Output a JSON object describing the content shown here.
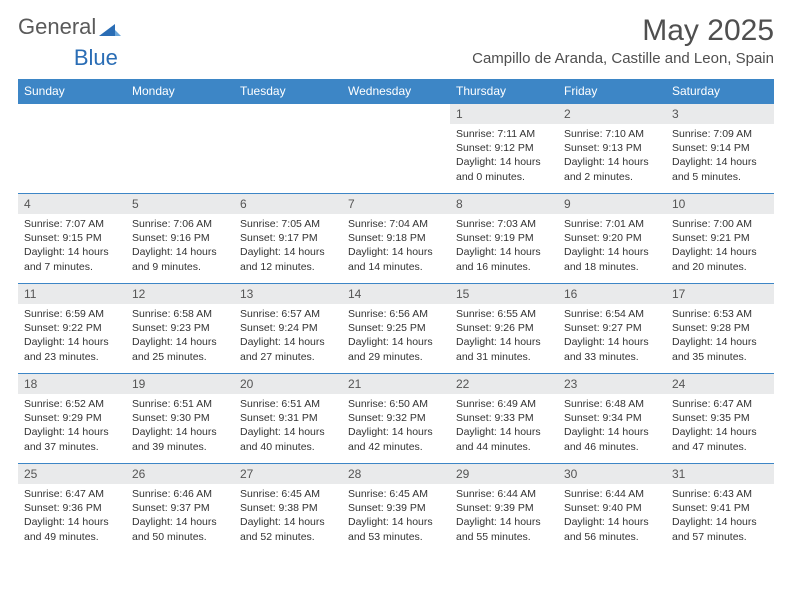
{
  "brand": {
    "name1": "General",
    "name2": "Blue"
  },
  "title": "May 2025",
  "location": "Campillo de Aranda, Castille and Leon, Spain",
  "colors": {
    "header_bg": "#3d86c6",
    "header_text": "#ffffff",
    "daynum_bg": "#e9eaeb",
    "border": "#3d86c6",
    "text": "#333333",
    "brand_gray": "#5a5a5a",
    "brand_blue": "#2a6db5",
    "background": "#ffffff"
  },
  "weekdays": [
    "Sunday",
    "Monday",
    "Tuesday",
    "Wednesday",
    "Thursday",
    "Friday",
    "Saturday"
  ],
  "weeks": [
    [
      null,
      null,
      null,
      null,
      {
        "n": "1",
        "sunrise": "7:11 AM",
        "sunset": "9:12 PM",
        "daylight": "14 hours and 0 minutes."
      },
      {
        "n": "2",
        "sunrise": "7:10 AM",
        "sunset": "9:13 PM",
        "daylight": "14 hours and 2 minutes."
      },
      {
        "n": "3",
        "sunrise": "7:09 AM",
        "sunset": "9:14 PM",
        "daylight": "14 hours and 5 minutes."
      }
    ],
    [
      {
        "n": "4",
        "sunrise": "7:07 AM",
        "sunset": "9:15 PM",
        "daylight": "14 hours and 7 minutes."
      },
      {
        "n": "5",
        "sunrise": "7:06 AM",
        "sunset": "9:16 PM",
        "daylight": "14 hours and 9 minutes."
      },
      {
        "n": "6",
        "sunrise": "7:05 AM",
        "sunset": "9:17 PM",
        "daylight": "14 hours and 12 minutes."
      },
      {
        "n": "7",
        "sunrise": "7:04 AM",
        "sunset": "9:18 PM",
        "daylight": "14 hours and 14 minutes."
      },
      {
        "n": "8",
        "sunrise": "7:03 AM",
        "sunset": "9:19 PM",
        "daylight": "14 hours and 16 minutes."
      },
      {
        "n": "9",
        "sunrise": "7:01 AM",
        "sunset": "9:20 PM",
        "daylight": "14 hours and 18 minutes."
      },
      {
        "n": "10",
        "sunrise": "7:00 AM",
        "sunset": "9:21 PM",
        "daylight": "14 hours and 20 minutes."
      }
    ],
    [
      {
        "n": "11",
        "sunrise": "6:59 AM",
        "sunset": "9:22 PM",
        "daylight": "14 hours and 23 minutes."
      },
      {
        "n": "12",
        "sunrise": "6:58 AM",
        "sunset": "9:23 PM",
        "daylight": "14 hours and 25 minutes."
      },
      {
        "n": "13",
        "sunrise": "6:57 AM",
        "sunset": "9:24 PM",
        "daylight": "14 hours and 27 minutes."
      },
      {
        "n": "14",
        "sunrise": "6:56 AM",
        "sunset": "9:25 PM",
        "daylight": "14 hours and 29 minutes."
      },
      {
        "n": "15",
        "sunrise": "6:55 AM",
        "sunset": "9:26 PM",
        "daylight": "14 hours and 31 minutes."
      },
      {
        "n": "16",
        "sunrise": "6:54 AM",
        "sunset": "9:27 PM",
        "daylight": "14 hours and 33 minutes."
      },
      {
        "n": "17",
        "sunrise": "6:53 AM",
        "sunset": "9:28 PM",
        "daylight": "14 hours and 35 minutes."
      }
    ],
    [
      {
        "n": "18",
        "sunrise": "6:52 AM",
        "sunset": "9:29 PM",
        "daylight": "14 hours and 37 minutes."
      },
      {
        "n": "19",
        "sunrise": "6:51 AM",
        "sunset": "9:30 PM",
        "daylight": "14 hours and 39 minutes."
      },
      {
        "n": "20",
        "sunrise": "6:51 AM",
        "sunset": "9:31 PM",
        "daylight": "14 hours and 40 minutes."
      },
      {
        "n": "21",
        "sunrise": "6:50 AM",
        "sunset": "9:32 PM",
        "daylight": "14 hours and 42 minutes."
      },
      {
        "n": "22",
        "sunrise": "6:49 AM",
        "sunset": "9:33 PM",
        "daylight": "14 hours and 44 minutes."
      },
      {
        "n": "23",
        "sunrise": "6:48 AM",
        "sunset": "9:34 PM",
        "daylight": "14 hours and 46 minutes."
      },
      {
        "n": "24",
        "sunrise": "6:47 AM",
        "sunset": "9:35 PM",
        "daylight": "14 hours and 47 minutes."
      }
    ],
    [
      {
        "n": "25",
        "sunrise": "6:47 AM",
        "sunset": "9:36 PM",
        "daylight": "14 hours and 49 minutes."
      },
      {
        "n": "26",
        "sunrise": "6:46 AM",
        "sunset": "9:37 PM",
        "daylight": "14 hours and 50 minutes."
      },
      {
        "n": "27",
        "sunrise": "6:45 AM",
        "sunset": "9:38 PM",
        "daylight": "14 hours and 52 minutes."
      },
      {
        "n": "28",
        "sunrise": "6:45 AM",
        "sunset": "9:39 PM",
        "daylight": "14 hours and 53 minutes."
      },
      {
        "n": "29",
        "sunrise": "6:44 AM",
        "sunset": "9:39 PM",
        "daylight": "14 hours and 55 minutes."
      },
      {
        "n": "30",
        "sunrise": "6:44 AM",
        "sunset": "9:40 PM",
        "daylight": "14 hours and 56 minutes."
      },
      {
        "n": "31",
        "sunrise": "6:43 AM",
        "sunset": "9:41 PM",
        "daylight": "14 hours and 57 minutes."
      }
    ]
  ],
  "labels": {
    "sunrise": "Sunrise:",
    "sunset": "Sunset:",
    "daylight": "Daylight:"
  }
}
